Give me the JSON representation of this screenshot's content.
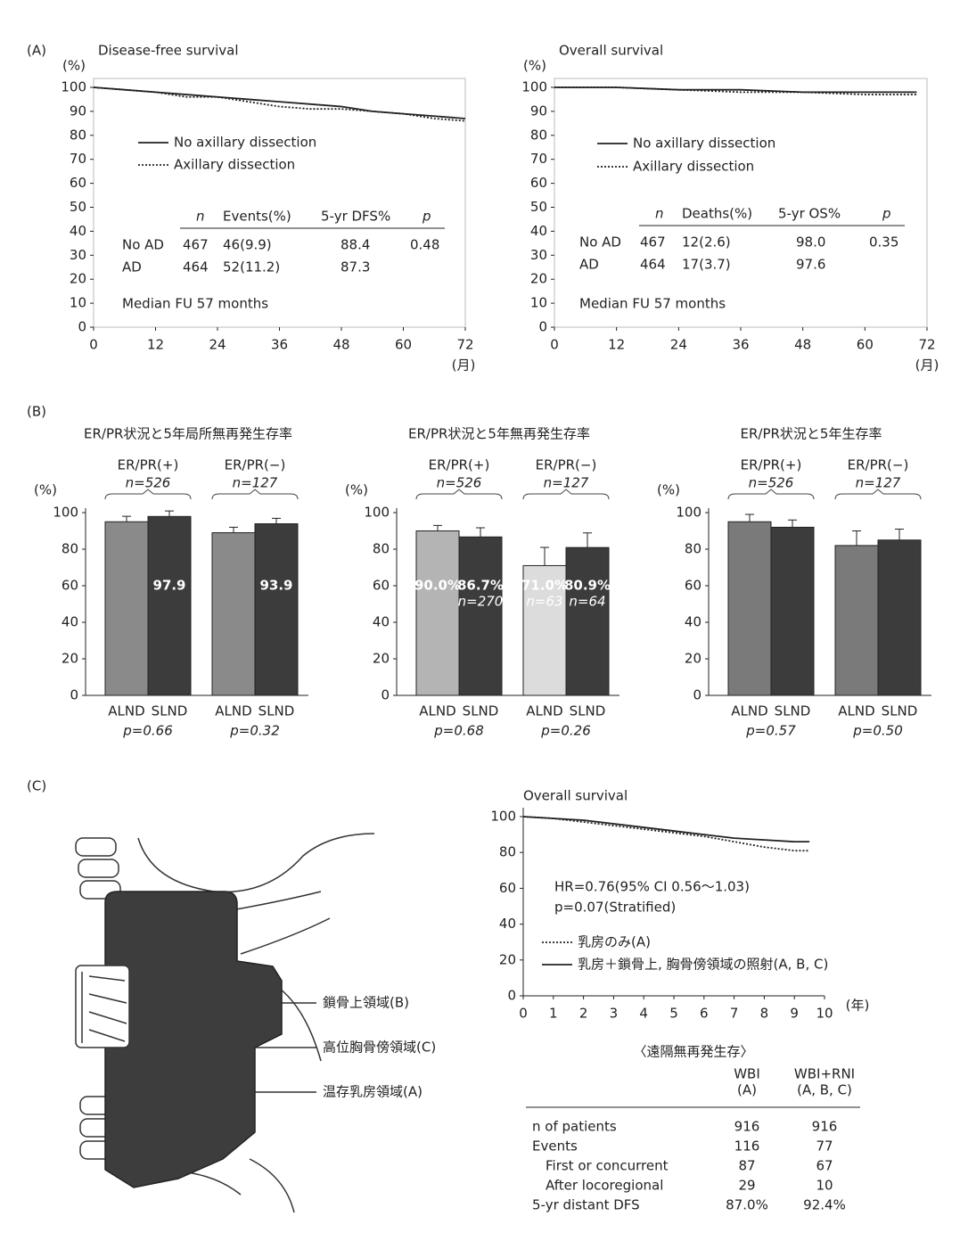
{
  "panel_labels": [
    "(A)",
    "(B)",
    "(C)"
  ],
  "chart_data": [
    {
      "type": "line",
      "title": "Disease-free survival",
      "y_label": "(%)",
      "x_label": "(月)",
      "xlim": [
        0,
        72
      ],
      "xticks": [
        0,
        12,
        24,
        36,
        48,
        60,
        72
      ],
      "ylim": [
        0,
        100
      ],
      "yticks": [
        0,
        10,
        20,
        30,
        40,
        50,
        60,
        70,
        80,
        90,
        100
      ],
      "x": [
        0,
        6,
        12,
        18,
        24,
        30,
        36,
        42,
        48,
        54,
        60,
        66,
        72
      ],
      "series": [
        {
          "name": "No axillary dissection",
          "color": "#222222",
          "style": "solid",
          "values": [
            100,
            99,
            98,
            97,
            96,
            95,
            94,
            93,
            92,
            90,
            89,
            88,
            87
          ]
        },
        {
          "name": "Axillary dissection",
          "color": "#222222",
          "style": "dotted",
          "values": [
            100,
            99,
            98,
            96,
            96,
            94,
            92,
            91,
            91,
            90,
            89,
            87,
            86
          ]
        }
      ],
      "table": {
        "columns": [
          "n",
          "Events(%)",
          "5-yr DFS%",
          "p"
        ],
        "rows": [
          [
            "No AD",
            "467",
            "46(9.9)",
            "88.4",
            "0.48"
          ],
          [
            "AD",
            "464",
            "52(11.2)",
            "87.3"
          ]
        ]
      },
      "note": "Median FU 57 months"
    },
    {
      "type": "line",
      "title": "Overall survival",
      "y_label": "(%)",
      "x_label": "(月)",
      "xlim": [
        0,
        72
      ],
      "xticks": [
        0,
        12,
        24,
        36,
        48,
        60,
        72
      ],
      "ylim": [
        0,
        100
      ],
      "yticks": [
        0,
        10,
        20,
        30,
        40,
        50,
        60,
        70,
        80,
        90,
        100
      ],
      "x": [
        0,
        12,
        24,
        36,
        48,
        60,
        70
      ],
      "series": [
        {
          "name": "No axillary dissection",
          "color": "#222222",
          "style": "solid",
          "values": [
            100,
            100,
            99,
            99,
            98,
            98,
            98
          ]
        },
        {
          "name": "Axillary dissection",
          "color": "#222222",
          "style": "dotted",
          "values": [
            100,
            100,
            99,
            98,
            98,
            97,
            97
          ]
        }
      ],
      "table": {
        "columns": [
          "n",
          "Deaths(%)",
          "5-yr OS%",
          "p"
        ],
        "rows": [
          [
            "No AD",
            "467",
            "12(2.6)",
            "98.0",
            "0.35"
          ],
          [
            "AD",
            "464",
            "17(3.7)",
            "97.6"
          ]
        ]
      },
      "note": "Median FU 57 months"
    },
    {
      "type": "bar",
      "title": "ER/PR状況と5年局所無再発生存率",
      "y_label": "(%)",
      "ylim": [
        0,
        100
      ],
      "yticks": [
        0,
        20,
        40,
        60,
        80,
        100
      ],
      "categories": [
        "ALND",
        "SLND",
        "ALND",
        "SLND"
      ],
      "values": [
        95,
        97.9,
        89,
        93.9
      ],
      "value_labels": [
        null,
        "97.9",
        null,
        "93.9"
      ],
      "errors": [
        3,
        3,
        3,
        3
      ],
      "colors": [
        "#8a8a8a",
        "#3c3c3c",
        "#8a8a8a",
        "#3c3c3c"
      ],
      "groups": [
        {
          "label": "ER/PR(+)",
          "n": "n=526",
          "p": "p=0.66"
        },
        {
          "label": "ER/PR(−)",
          "n": "n=127",
          "p": "p=0.32"
        }
      ]
    },
    {
      "type": "bar",
      "title": "ER/PR状況と5年無再発生存率",
      "y_label": "(%)",
      "ylim": [
        0,
        100
      ],
      "yticks": [
        0,
        20,
        40,
        60,
        80,
        100
      ],
      "categories": [
        "ALND",
        "SLND",
        "ALND",
        "SLND"
      ],
      "values": [
        90.0,
        86.7,
        71.0,
        80.9
      ],
      "value_labels": [
        "90.0%",
        "86.7%",
        "71.0%",
        "80.9%"
      ],
      "n_labels": [
        null,
        "n=270",
        "n=63",
        "n=64"
      ],
      "errors": [
        3,
        5,
        10,
        8
      ],
      "colors": [
        "#b4b4b4",
        "#3c3c3c",
        "#dcdcdc",
        "#3c3c3c"
      ],
      "groups": [
        {
          "label": "ER/PR(+)",
          "n": "n=526",
          "p": "p=0.68"
        },
        {
          "label": "ER/PR(−)",
          "n": "n=127",
          "p": "p=0.26"
        }
      ]
    },
    {
      "type": "bar",
      "title": "ER/PR状況と5年生存率",
      "y_label": "(%)",
      "ylim": [
        0,
        100
      ],
      "yticks": [
        0,
        20,
        40,
        60,
        80,
        100
      ],
      "categories": [
        "ALND",
        "SLND",
        "ALND",
        "SLND"
      ],
      "values": [
        95,
        92,
        82,
        85
      ],
      "errors": [
        4,
        4,
        8,
        6
      ],
      "colors": [
        "#7a7a7a",
        "#3c3c3c",
        "#7a7a7a",
        "#3c3c3c"
      ],
      "groups": [
        {
          "label": "ER/PR(+)",
          "n": "n=526",
          "p": "p=0.57"
        },
        {
          "label": "ER/PR(−)",
          "n": "n=127",
          "p": "p=0.50"
        }
      ]
    },
    {
      "type": "line",
      "title": "Overall survival",
      "x_label": "(年)",
      "xlim": [
        0,
        10
      ],
      "xticks": [
        0,
        1,
        2,
        3,
        4,
        5,
        6,
        7,
        8,
        9,
        10
      ],
      "ylim": [
        0,
        100
      ],
      "yticks": [
        0,
        20,
        40,
        60,
        80,
        100
      ],
      "x": [
        0,
        1,
        2,
        3,
        4,
        5,
        6,
        7,
        8,
        9,
        9.5
      ],
      "series": [
        {
          "name": "乳房のみ(A)",
          "color": "#222222",
          "style": "dotted",
          "values": [
            100,
            99,
            97,
            95,
            93,
            91,
            89,
            86,
            83,
            81,
            81
          ]
        },
        {
          "name": "乳房＋鎖骨上, 胸骨傍領域の照射(A, B, C)",
          "color": "#222222",
          "style": "solid",
          "values": [
            100,
            99,
            98,
            96,
            94,
            92,
            90,
            88,
            87,
            86,
            86
          ]
        }
      ],
      "annotations": [
        "HR=0.76(95% CI 0.56〜1.03)",
        "p=0.07(Stratified)"
      ]
    }
  ],
  "diagram": {
    "labels": [
      "鎖骨上領域(B)",
      "高位胸骨傍領域(C)",
      "温存乳房領域(A)"
    ]
  },
  "table": {
    "title": "〈遠隔無再発生存〉",
    "columns": [
      "WBI",
      "WBI+RNI"
    ],
    "column_subs": [
      "(A)",
      "(A, B, C)"
    ],
    "rows": [
      [
        "n of patients",
        "916",
        "916"
      ],
      [
        "Events",
        "116",
        "77"
      ],
      [
        "First or concurrent",
        "87",
        "67"
      ],
      [
        "After locoregional",
        "29",
        "10"
      ],
      [
        "5-yr distant DFS",
        "87.0%",
        "92.4%"
      ]
    ]
  }
}
